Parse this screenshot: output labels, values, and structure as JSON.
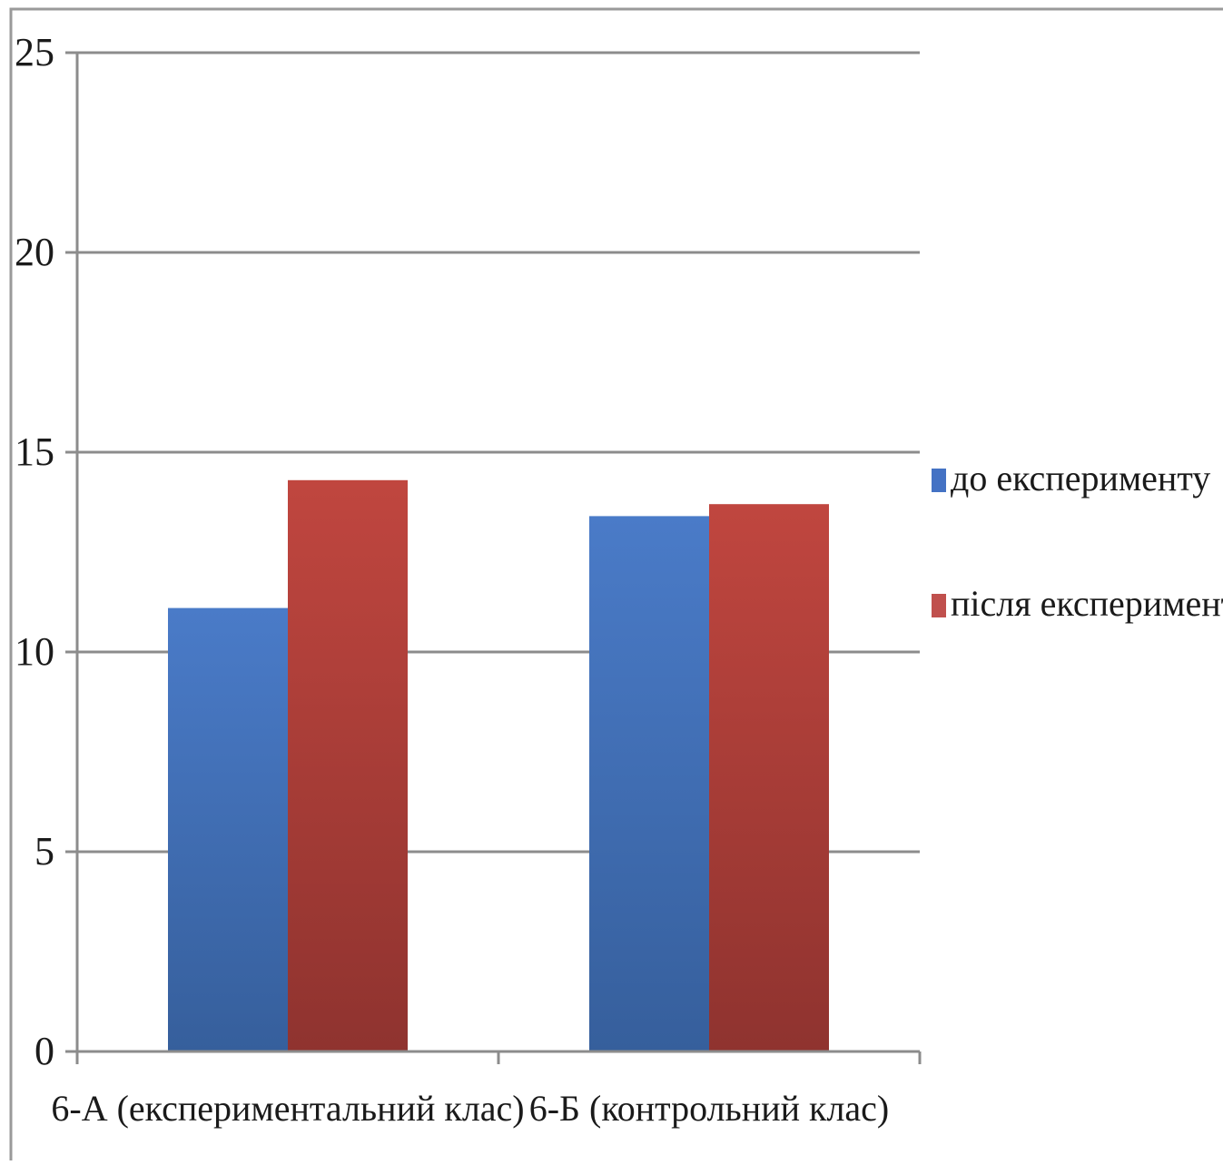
{
  "chart_data": {
    "type": "bar",
    "categories": [
      "6-А (експериментальний клас)",
      "6-Б (контрольний клас)"
    ],
    "series": [
      {
        "name": "до експерименту",
        "values": [
          11.1,
          13.4
        ],
        "color": "#4472c4"
      },
      {
        "name": "після експерименту",
        "values": [
          14.3,
          13.7
        ],
        "color": "#c0504d"
      }
    ],
    "ylim": [
      0,
      25
    ],
    "yticks": [
      "0",
      "5",
      "10",
      "15",
      "20",
      "25"
    ],
    "grid": true,
    "legend": "right",
    "title": "",
    "xlabel": "",
    "ylabel": ""
  }
}
